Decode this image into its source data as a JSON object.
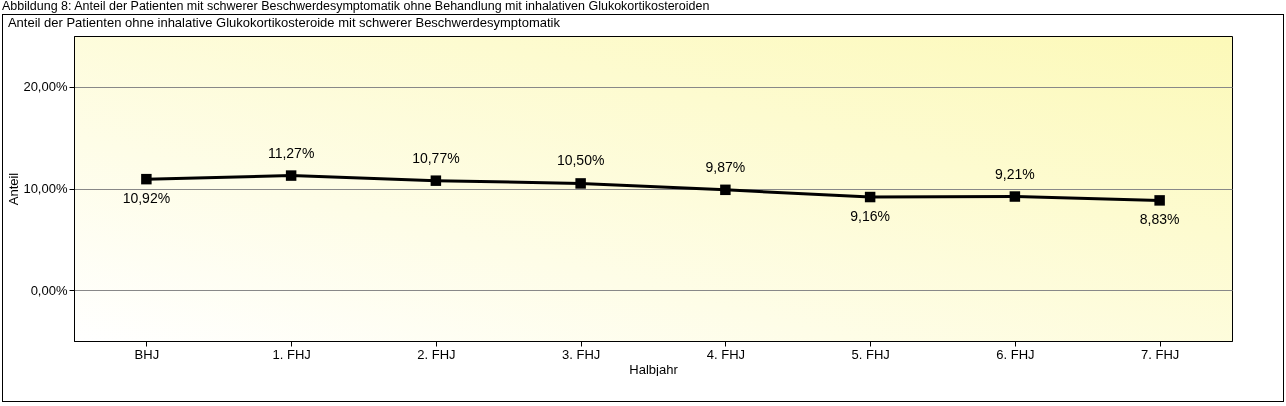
{
  "chart_data": {
    "type": "line",
    "title": "Abbildung 8: Anteil der Patienten mit schwerer Beschwerdesymptomatik ohne Behandlung mit inhalativen Glukokortikosteroiden",
    "subtitle": "Anteil der Patienten ohne inhalative Glukokortikosteroide mit schwerer Beschwerdesymptomatik",
    "xlabel": "Halbjahr",
    "ylabel": "Anteil",
    "categories": [
      "BHJ",
      "1. FHJ",
      "2. FHJ",
      "3. FHJ",
      "4. FHJ",
      "5. FHJ",
      "6. FHJ",
      "7. FHJ"
    ],
    "series": [
      {
        "color": "#000000",
        "values": [
          10.92,
          11.27,
          10.77,
          10.5,
          9.87,
          9.16,
          9.21,
          8.83
        ],
        "value_labels": [
          "10,92%",
          "11,27%",
          "10,77%",
          "10,50%",
          "9,87%",
          "9,16%",
          "9,21%",
          "8,83%"
        ]
      }
    ],
    "ylim": [
      -5,
      25
    ],
    "yticks": [
      {
        "value": 0,
        "label": "0,00%"
      },
      {
        "value": 10,
        "label": "10,00%"
      },
      {
        "value": 20,
        "label": "20,00%"
      }
    ],
    "grid": "y",
    "marker": "square",
    "line_style": "solid"
  }
}
